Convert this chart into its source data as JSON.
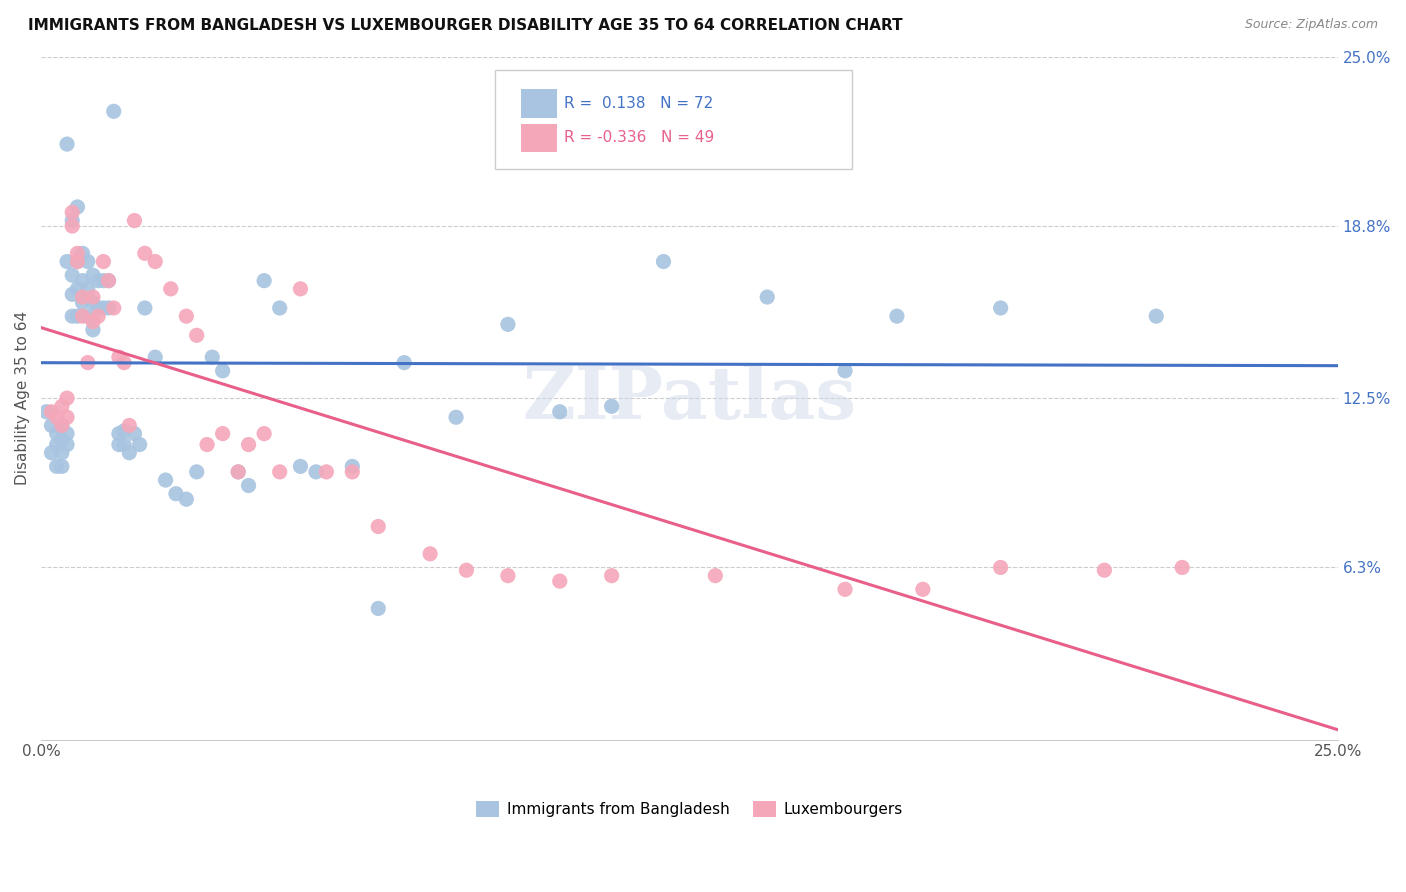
{
  "title": "IMMIGRANTS FROM BANGLADESH VS LUXEMBOURGER DISABILITY AGE 35 TO 64 CORRELATION CHART",
  "source": "Source: ZipAtlas.com",
  "ylabel": "Disability Age 35 to 64",
  "xmin": 0.0,
  "xmax": 0.25,
  "ymin": 0.0,
  "ymax": 0.25,
  "y_tick_values_right": [
    0.25,
    0.188,
    0.125,
    0.063
  ],
  "y_tick_labels_right": [
    "25.0%",
    "18.8%",
    "12.5%",
    "6.3%"
  ],
  "bangladesh_R": 0.138,
  "bangladesh_N": 72,
  "luxembourg_R": -0.336,
  "luxembourg_N": 49,
  "bangladesh_color": "#a8c4e0",
  "luxembourg_color": "#f4a7b9",
  "bangladesh_line_color": "#4472C4",
  "luxembourg_line_color": "#e8608a",
  "legend_label_1": "Immigrants from Bangladesh",
  "legend_label_2": "Luxembourgers",
  "watermark": "ZIPatlas",
  "bangladesh_x": [
    0.001,
    0.002,
    0.002,
    0.003,
    0.003,
    0.003,
    0.004,
    0.004,
    0.004,
    0.004,
    0.005,
    0.005,
    0.005,
    0.005,
    0.006,
    0.006,
    0.006,
    0.006,
    0.007,
    0.007,
    0.007,
    0.007,
    0.008,
    0.008,
    0.008,
    0.009,
    0.009,
    0.009,
    0.01,
    0.01,
    0.01,
    0.011,
    0.011,
    0.012,
    0.012,
    0.013,
    0.013,
    0.014,
    0.015,
    0.015,
    0.016,
    0.016,
    0.017,
    0.018,
    0.019,
    0.02,
    0.022,
    0.024,
    0.026,
    0.028,
    0.03,
    0.033,
    0.035,
    0.038,
    0.04,
    0.043,
    0.046,
    0.05,
    0.053,
    0.06,
    0.065,
    0.07,
    0.08,
    0.09,
    0.1,
    0.11,
    0.12,
    0.14,
    0.155,
    0.165,
    0.185,
    0.215
  ],
  "bangladesh_y": [
    0.12,
    0.115,
    0.105,
    0.112,
    0.108,
    0.1,
    0.115,
    0.11,
    0.105,
    0.1,
    0.218,
    0.175,
    0.112,
    0.108,
    0.19,
    0.17,
    0.163,
    0.155,
    0.195,
    0.175,
    0.165,
    0.155,
    0.178,
    0.168,
    0.16,
    0.175,
    0.165,
    0.155,
    0.17,
    0.16,
    0.15,
    0.168,
    0.158,
    0.168,
    0.158,
    0.168,
    0.158,
    0.23,
    0.112,
    0.108,
    0.113,
    0.108,
    0.105,
    0.112,
    0.108,
    0.158,
    0.14,
    0.095,
    0.09,
    0.088,
    0.098,
    0.14,
    0.135,
    0.098,
    0.093,
    0.168,
    0.158,
    0.1,
    0.098,
    0.1,
    0.048,
    0.138,
    0.118,
    0.152,
    0.12,
    0.122,
    0.175,
    0.162,
    0.135,
    0.155,
    0.158,
    0.155
  ],
  "luxembourg_x": [
    0.002,
    0.003,
    0.004,
    0.004,
    0.005,
    0.005,
    0.006,
    0.006,
    0.007,
    0.007,
    0.008,
    0.008,
    0.009,
    0.01,
    0.01,
    0.011,
    0.012,
    0.013,
    0.014,
    0.015,
    0.016,
    0.017,
    0.018,
    0.02,
    0.022,
    0.025,
    0.028,
    0.03,
    0.032,
    0.035,
    0.038,
    0.04,
    0.043,
    0.046,
    0.05,
    0.055,
    0.06,
    0.065,
    0.075,
    0.082,
    0.09,
    0.1,
    0.11,
    0.13,
    0.155,
    0.17,
    0.185,
    0.205,
    0.22
  ],
  "luxembourg_y": [
    0.12,
    0.118,
    0.122,
    0.115,
    0.125,
    0.118,
    0.193,
    0.188,
    0.175,
    0.178,
    0.155,
    0.162,
    0.138,
    0.153,
    0.162,
    0.155,
    0.175,
    0.168,
    0.158,
    0.14,
    0.138,
    0.115,
    0.19,
    0.178,
    0.175,
    0.165,
    0.155,
    0.148,
    0.108,
    0.112,
    0.098,
    0.108,
    0.112,
    0.098,
    0.165,
    0.098,
    0.098,
    0.078,
    0.068,
    0.062,
    0.06,
    0.058,
    0.06,
    0.06,
    0.055,
    0.055,
    0.063,
    0.062,
    0.063
  ]
}
